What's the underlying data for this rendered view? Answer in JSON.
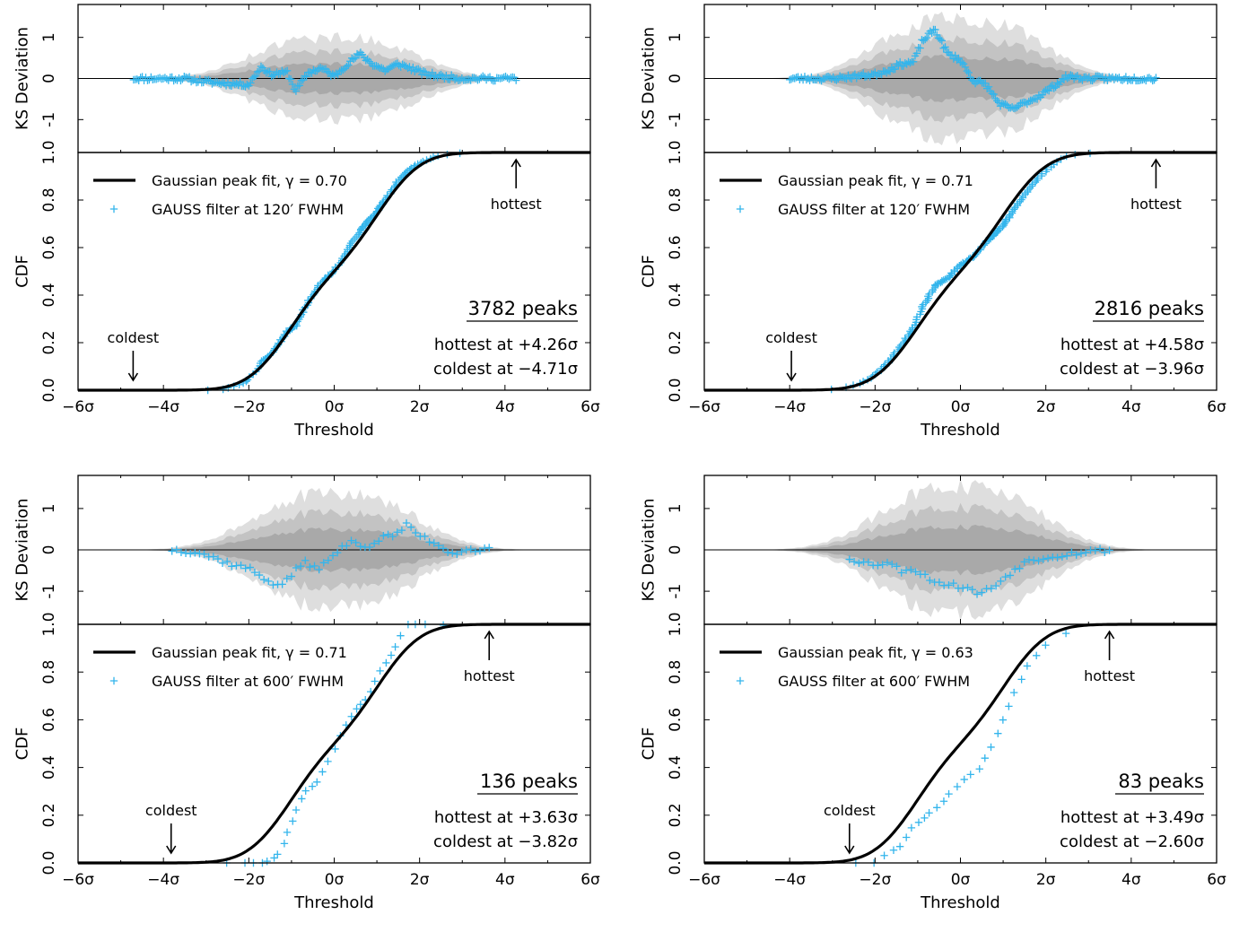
{
  "colors": {
    "data": "#33b5ec",
    "fit": "#000000",
    "band_outer": "#dedede",
    "band_mid": "#c3c3c3",
    "band_inner": "#a9a9a9",
    "axes": "#000000"
  },
  "chart_data": [
    {
      "type": "line",
      "panel": "top-left",
      "gamma": 0.7,
      "fwhm": 120,
      "mu": 1.05,
      "sd": 0.78,
      "noise_seed": 11,
      "dev_amp": 0.35,
      "band_amp": 1.0,
      "legend_fit": "Gaussian peak fit, γ = 0.70",
      "legend_data": "GAUSS filter at 120′ FWHM",
      "peaks_label": "3782 peaks",
      "hottest_label": "hottest at +4.26σ",
      "coldest_label": "coldest at −4.71σ",
      "hottest_text": "hottest",
      "coldest_text": "coldest",
      "hottest": 4.26,
      "coldest": -4.71,
      "xlim": [
        -6,
        6
      ],
      "x_ticks": [
        "−6σ",
        "−4σ",
        "−2σ",
        "0σ",
        "2σ",
        "4σ",
        "6σ"
      ],
      "xlabel": "Threshold",
      "ylabel_cdf": "CDF",
      "ylabel_ks": "KS Deviation",
      "cdf_ylim": [
        0,
        1
      ],
      "cdf_y_ticks": [
        "0.0",
        "0.2",
        "0.4",
        "0.6",
        "0.8",
        "1.0"
      ],
      "ks_ylim": [
        -1.8,
        1.8
      ],
      "ks_y_ticks": [
        "1",
        "0",
        "-1"
      ],
      "ks_deviation_path": [
        [
          -4.7,
          0
        ],
        [
          -3.5,
          0
        ],
        [
          -3,
          -0.08
        ],
        [
          -2.5,
          -0.12
        ],
        [
          -2,
          -0.15
        ],
        [
          -1.7,
          0.3
        ],
        [
          -1.5,
          0.1
        ],
        [
          -1.1,
          0.15
        ],
        [
          -0.9,
          -0.3
        ],
        [
          -0.6,
          0.15
        ],
        [
          -0.3,
          0.25
        ],
        [
          0,
          0.05
        ],
        [
          0.3,
          0.35
        ],
        [
          0.6,
          0.6
        ],
        [
          0.9,
          0.35
        ],
        [
          1.2,
          0.2
        ],
        [
          1.5,
          0.35
        ],
        [
          1.8,
          0.25
        ],
        [
          2.1,
          0.12
        ],
        [
          2.5,
          0.05
        ],
        [
          3,
          0
        ],
        [
          4.26,
          0
        ]
      ]
    },
    {
      "type": "line",
      "panel": "top-right",
      "gamma": 0.71,
      "fwhm": 120,
      "mu": 1.05,
      "sd": 0.8,
      "noise_seed": 23,
      "dev_amp": 0.32,
      "band_amp": 1.45,
      "legend_fit": "Gaussian peak fit, γ = 0.71",
      "legend_data": "GAUSS filter at 120′ FWHM",
      "peaks_label": "2816 peaks",
      "hottest_label": "hottest at +4.58σ",
      "coldest_label": "coldest at −3.96σ",
      "hottest_text": "hottest",
      "coldest_text": "coldest",
      "hottest": 4.58,
      "coldest": -3.96,
      "xlim": [
        -6,
        6
      ],
      "x_ticks": [
        "−6σ",
        "−4σ",
        "−2σ",
        "0σ",
        "2σ",
        "4σ",
        "6σ"
      ],
      "xlabel": "Threshold",
      "ylabel_cdf": "CDF",
      "ylabel_ks": "KS Deviation",
      "cdf_ylim": [
        0,
        1
      ],
      "cdf_y_ticks": [
        "0.0",
        "0.2",
        "0.4",
        "0.6",
        "0.8",
        "1.0"
      ],
      "ks_ylim": [
        -1.8,
        1.8
      ],
      "ks_y_ticks": [
        "1",
        "0",
        "-1"
      ],
      "ks_deviation_path": [
        [
          -4,
          0
        ],
        [
          -3,
          0
        ],
        [
          -2.5,
          0.05
        ],
        [
          -2,
          0.1
        ],
        [
          -1.7,
          0.2
        ],
        [
          -1.4,
          0.35
        ],
        [
          -1.1,
          0.4
        ],
        [
          -0.9,
          0.9
        ],
        [
          -0.6,
          1.2
        ],
        [
          -0.3,
          0.6
        ],
        [
          0,
          0.45
        ],
        [
          0.3,
          -0.05
        ],
        [
          0.6,
          -0.15
        ],
        [
          0.9,
          -0.6
        ],
        [
          1.2,
          -0.75
        ],
        [
          1.5,
          -0.6
        ],
        [
          1.8,
          -0.45
        ],
        [
          2.1,
          -0.25
        ],
        [
          2.5,
          0.05
        ],
        [
          3,
          0
        ],
        [
          4.58,
          0
        ]
      ]
    },
    {
      "type": "line",
      "panel": "bottom-left",
      "gamma": 0.71,
      "fwhm": 600,
      "mu": 1.05,
      "sd": 0.78,
      "noise_seed": 37,
      "dev_amp": 0.45,
      "band_amp": 1.35,
      "legend_fit": "Gaussian peak fit, γ = 0.71",
      "legend_data": "GAUSS filter at 600′ FWHM",
      "peaks_label": "136 peaks",
      "hottest_label": "hottest at +3.63σ",
      "coldest_label": "coldest at −3.82σ",
      "hottest_text": "hottest",
      "coldest_text": "coldest",
      "hottest": 3.63,
      "coldest": -3.82,
      "xlim": [
        -6,
        6
      ],
      "x_ticks": [
        "−6σ",
        "−4σ",
        "−2σ",
        "0σ",
        "2σ",
        "4σ",
        "6σ"
      ],
      "xlabel": "Threshold",
      "ylabel_cdf": "CDF",
      "ylabel_ks": "KS Deviation",
      "cdf_ylim": [
        0,
        1
      ],
      "cdf_y_ticks": [
        "0.0",
        "0.2",
        "0.4",
        "0.6",
        "0.8",
        "1.0"
      ],
      "ks_ylim": [
        -1.8,
        1.8
      ],
      "ks_y_ticks": [
        "1",
        "0",
        "-1"
      ],
      "ks_deviation_path": [
        [
          -3.8,
          0
        ],
        [
          -3.2,
          -0.05
        ],
        [
          -2.8,
          -0.2
        ],
        [
          -2.4,
          -0.35
        ],
        [
          -2,
          -0.45
        ],
        [
          -1.6,
          -0.7
        ],
        [
          -1.3,
          -0.9
        ],
        [
          -1,
          -0.6
        ],
        [
          -0.7,
          -0.3
        ],
        [
          -0.4,
          -0.45
        ],
        [
          -0.1,
          -0.25
        ],
        [
          0.2,
          0.1
        ],
        [
          0.5,
          0.2
        ],
        [
          0.8,
          0.05
        ],
        [
          1.1,
          0.3
        ],
        [
          1.4,
          0.35
        ],
        [
          1.7,
          0.6
        ],
        [
          2,
          0.35
        ],
        [
          2.4,
          0.15
        ],
        [
          2.8,
          -0.1
        ],
        [
          3,
          0
        ],
        [
          3.63,
          0
        ]
      ]
    },
    {
      "type": "line",
      "panel": "bottom-right",
      "gamma": 0.63,
      "fwhm": 600,
      "mu": 1.05,
      "sd": 0.78,
      "noise_seed": 53,
      "dev_amp": 0.45,
      "band_amp": 1.5,
      "legend_fit": "Gaussian peak fit, γ = 0.63",
      "legend_data": "GAUSS filter at 600′ FWHM",
      "peaks_label": "83 peaks",
      "hottest_label": "hottest at +3.49σ",
      "coldest_label": "coldest at −2.60σ",
      "hottest_text": "hottest",
      "coldest_text": "coldest",
      "hottest": 3.49,
      "coldest": -2.6,
      "xlim": [
        -6,
        6
      ],
      "x_ticks": [
        "−6σ",
        "−4σ",
        "−2σ",
        "0σ",
        "2σ",
        "4σ",
        "6σ"
      ],
      "xlabel": "Threshold",
      "ylabel_cdf": "CDF",
      "ylabel_ks": "KS Deviation",
      "cdf_ylim": [
        0,
        1
      ],
      "cdf_y_ticks": [
        "0.0",
        "0.2",
        "0.4",
        "0.6",
        "0.8",
        "1.0"
      ],
      "ks_ylim": [
        -1.8,
        1.8
      ],
      "ks_y_ticks": [
        "1",
        "0",
        "-1"
      ],
      "ks_deviation_path": [
        [
          -2.6,
          -0.2
        ],
        [
          -2.3,
          -0.3
        ],
        [
          -2,
          -0.35
        ],
        [
          -1.7,
          -0.3
        ],
        [
          -1.4,
          -0.5
        ],
        [
          -1.1,
          -0.45
        ],
        [
          -0.8,
          -0.65
        ],
        [
          -0.5,
          -0.8
        ],
        [
          -0.2,
          -0.85
        ],
        [
          0.1,
          -0.9
        ],
        [
          0.4,
          -1.05
        ],
        [
          0.7,
          -0.95
        ],
        [
          1,
          -0.7
        ],
        [
          1.3,
          -0.45
        ],
        [
          1.6,
          -0.25
        ],
        [
          1.9,
          -0.2
        ],
        [
          2.2,
          -0.15
        ],
        [
          2.5,
          -0.1
        ],
        [
          2.9,
          -0.05
        ],
        [
          3.2,
          -0.02
        ],
        [
          3.49,
          0
        ]
      ]
    }
  ]
}
